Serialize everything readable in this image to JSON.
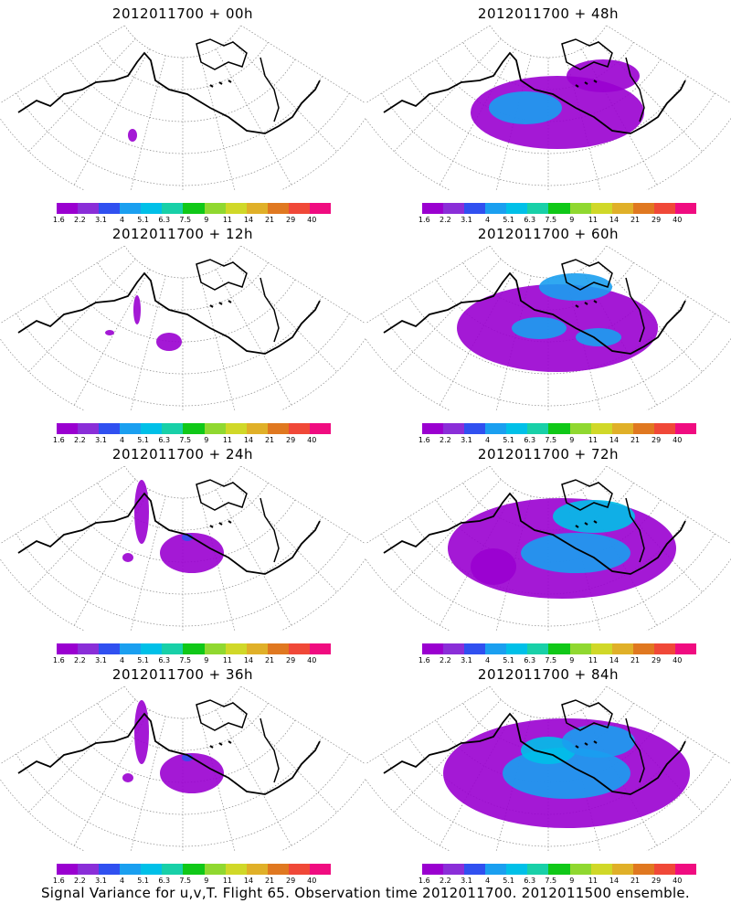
{
  "panels": [
    {
      "title": "2012011700 + 00h",
      "level": 0
    },
    {
      "title": "2012011700 + 48h",
      "level": 3
    },
    {
      "title": "2012011700 + 12h",
      "level": 1
    },
    {
      "title": "2012011700 + 60h",
      "level": 4
    },
    {
      "title": "2012011700 + 24h",
      "level": 2
    },
    {
      "title": "2012011700 + 72h",
      "level": 5
    },
    {
      "title": "2012011700 + 36h",
      "level": 2
    },
    {
      "title": "2012011700 + 84h",
      "level": 6
    }
  ],
  "colorbar": {
    "colors": [
      "#9a00d0",
      "#8a2ed8",
      "#3050f0",
      "#1a9ff0",
      "#00c0e8",
      "#18d0a8",
      "#10c818",
      "#90d830",
      "#d0d828",
      "#e0b028",
      "#e07820",
      "#f04838",
      "#f00c80"
    ],
    "labels": [
      "1.6",
      "2.2",
      "3.1",
      "4",
      "5.1",
      "6.3",
      "7.5",
      "9",
      "11",
      "14",
      "21",
      "29",
      "40"
    ]
  },
  "footer": "Signal Variance for u,v,T. Flight 65. Observation time 2012011700. 2012011500 ensemble."
}
